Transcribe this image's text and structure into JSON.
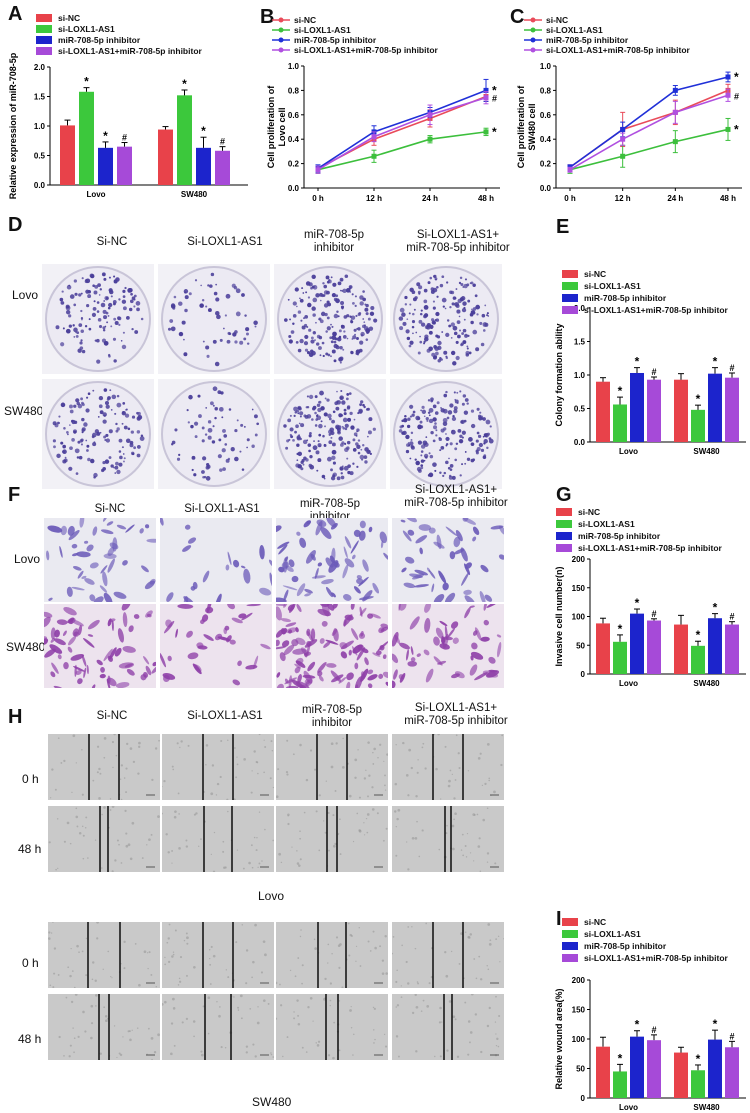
{
  "panel_letters": [
    "A",
    "B",
    "C",
    "D",
    "E",
    "F",
    "G",
    "H",
    "I"
  ],
  "colors": {
    "si_nc": "#e8424a",
    "si_loxl1": "#3cc83c",
    "inhibitor": "#1c24cc",
    "combo": "#a64ad8",
    "line_nc": "#e94b5a",
    "line_loxl1": "#3cbf3c",
    "line_inh": "#2030d8",
    "line_combo": "#b050e0",
    "colony_stain": "#4b3f9a",
    "transwell_lovo": "#6a59b8",
    "transwell_sw480": "#8e3fa8"
  },
  "legend_bar": [
    "si-NC",
    "si-LOXL1-AS1",
    "miR-708-5p inhibitor",
    "si-LOXL1-AS1+miR-708-5p inhibitor"
  ],
  "legend_line": [
    "si-NC",
    "si-LOXL1-AS1",
    "miR-708-5p inhibitor",
    "si-LOXL1-AS1+miR-708-5p inhibitor"
  ],
  "col_headers": {
    "c1": "Si-NC",
    "c2": "Si-LOXL1-AS1",
    "c3": [
      "miR-708-5p",
      "inhibitor"
    ],
    "c4": [
      "Si-LOXL1-AS1+",
      "miR-708-5p inhibitor"
    ]
  },
  "rows": {
    "lovo": "Lovo",
    "sw480": "SW480",
    "t0": "0 h",
    "t48": "48 h",
    "group_lovo": "Lovo",
    "group_sw480": "SW480"
  },
  "chart_data": [
    {
      "id": "A",
      "type": "bar",
      "ylabel": "Relative expression of miR-708-5p",
      "categories": [
        "Lovo",
        "SW480"
      ],
      "ylim": [
        0,
        2.0
      ],
      "yticks": [
        "0.0",
        "0.5",
        "1.0",
        "1.5",
        "2.0"
      ],
      "series": [
        {
          "name": "si-NC",
          "values": [
            1.01,
            0.94
          ],
          "err": [
            0.09,
            0.05
          ],
          "mark": [
            "",
            ""
          ]
        },
        {
          "name": "si-LOXL1-AS1",
          "values": [
            1.58,
            1.52
          ],
          "err": [
            0.07,
            0.09
          ],
          "mark": [
            "*",
            "*"
          ]
        },
        {
          "name": "miR-708-5p inhibitor",
          "values": [
            0.63,
            0.63
          ],
          "err": [
            0.1,
            0.18
          ],
          "mark": [
            "*",
            "*"
          ]
        },
        {
          "name": "si-LOXL1-AS1+miR-708-5p inhibitor",
          "values": [
            0.65,
            0.58
          ],
          "err": [
            0.07,
            0.07
          ],
          "mark": [
            "#",
            "#"
          ]
        }
      ]
    },
    {
      "id": "B",
      "type": "line",
      "ylabel": "Cell proliferation of Lovo cell",
      "x": [
        "0 h",
        "12 h",
        "24 h",
        "48 h"
      ],
      "ylim": [
        0,
        1.0
      ],
      "yticks": [
        "0.0",
        "0.2",
        "0.4",
        "0.6",
        "0.8",
        "1.0"
      ],
      "series": [
        {
          "name": "si-NC",
          "values": [
            0.16,
            0.4,
            0.57,
            0.75
          ],
          "err": [
            0.02,
            0.05,
            0.07,
            0.04
          ],
          "mark": ""
        },
        {
          "name": "si-LOXL1-AS1",
          "values": [
            0.15,
            0.26,
            0.4,
            0.46
          ],
          "err": [
            0.03,
            0.05,
            0.03,
            0.03
          ],
          "mark": "*"
        },
        {
          "name": "miR-708-5p inhibitor",
          "values": [
            0.16,
            0.46,
            0.62,
            0.8
          ],
          "err": [
            0.03,
            0.05,
            0.04,
            0.09
          ],
          "mark": "*"
        },
        {
          "name": "si-LOXL1-AS1+miR-708-5p inhibitor",
          "values": [
            0.15,
            0.42,
            0.6,
            0.74
          ],
          "err": [
            0.03,
            0.04,
            0.08,
            0.05
          ],
          "mark": "#"
        }
      ]
    },
    {
      "id": "C",
      "type": "line",
      "ylabel": "Cell proliferation of SW480 cell",
      "x": [
        "0 h",
        "12 h",
        "24 h",
        "48 h"
      ],
      "ylim": [
        0,
        1.0
      ],
      "yticks": [
        "0.0",
        "0.2",
        "0.4",
        "0.6",
        "0.8",
        "1.0"
      ],
      "series": [
        {
          "name": "si-NC",
          "values": [
            0.17,
            0.48,
            0.62,
            0.8
          ],
          "err": [
            0.02,
            0.14,
            0.1,
            0.05
          ],
          "mark": ""
        },
        {
          "name": "si-LOXL1-AS1",
          "values": [
            0.15,
            0.26,
            0.38,
            0.48
          ],
          "err": [
            0.03,
            0.09,
            0.09,
            0.09
          ],
          "mark": "*"
        },
        {
          "name": "miR-708-5p inhibitor",
          "values": [
            0.17,
            0.48,
            0.8,
            0.91
          ],
          "err": [
            0.02,
            0.06,
            0.04,
            0.04
          ],
          "mark": "*"
        },
        {
          "name": "si-LOXL1-AS1+miR-708-5p inhibitor",
          "values": [
            0.15,
            0.4,
            0.62,
            0.76
          ],
          "err": [
            0.02,
            0.05,
            0.09,
            0.05
          ],
          "mark": "#"
        }
      ]
    },
    {
      "id": "E",
      "type": "bar",
      "ylabel": "Colony formation ability",
      "categories": [
        "Lovo",
        "SW480"
      ],
      "ylim": [
        0,
        2.0
      ],
      "yticks": [
        "0.0",
        "0.5",
        "1.0",
        "1.5",
        "2.0"
      ],
      "series": [
        {
          "name": "si-NC",
          "values": [
            0.9,
            0.93
          ],
          "err": [
            0.06,
            0.09
          ],
          "mark": [
            "",
            ""
          ]
        },
        {
          "name": "si-LOXL1-AS1",
          "values": [
            0.56,
            0.48
          ],
          "err": [
            0.11,
            0.07
          ],
          "mark": [
            "*",
            "*"
          ]
        },
        {
          "name": "miR-708-5p inhibitor",
          "values": [
            1.03,
            1.02
          ],
          "err": [
            0.08,
            0.09
          ],
          "mark": [
            "*",
            "*"
          ]
        },
        {
          "name": "si-LOXL1-AS1+miR-708-5p inhibitor",
          "values": [
            0.93,
            0.96
          ],
          "err": [
            0.04,
            0.07
          ],
          "mark": [
            "#",
            "#"
          ]
        }
      ]
    },
    {
      "id": "G",
      "type": "bar",
      "ylabel": "Invasive cell number(n)",
      "categories": [
        "Lovo",
        "SW480"
      ],
      "ylim": [
        0,
        200
      ],
      "yticks": [
        "0",
        "50",
        "100",
        "150",
        "200"
      ],
      "series": [
        {
          "name": "si-NC",
          "values": [
            88,
            86
          ],
          "err": [
            9,
            16
          ],
          "mark": [
            "",
            ""
          ]
        },
        {
          "name": "si-LOXL1-AS1",
          "values": [
            56,
            49
          ],
          "err": [
            12,
            8
          ],
          "mark": [
            "*",
            "*"
          ]
        },
        {
          "name": "miR-708-5p inhibitor",
          "values": [
            105,
            97
          ],
          "err": [
            8,
            8
          ],
          "mark": [
            "*",
            "*"
          ]
        },
        {
          "name": "si-LOXL1-AS1+miR-708-5p inhibitor",
          "values": [
            93,
            86
          ],
          "err": [
            3,
            5
          ],
          "mark": [
            "#",
            "#"
          ]
        }
      ]
    },
    {
      "id": "I",
      "type": "bar",
      "ylabel": "Relative wound area(%)",
      "categories": [
        "Lovo",
        "SW480"
      ],
      "ylim": [
        0,
        200
      ],
      "yticks": [
        "0",
        "50",
        "100",
        "150",
        "200"
      ],
      "series": [
        {
          "name": "si-NC",
          "values": [
            87,
            77
          ],
          "err": [
            16,
            9
          ],
          "mark": [
            "",
            ""
          ]
        },
        {
          "name": "si-LOXL1-AS1",
          "values": [
            45,
            47
          ],
          "err": [
            12,
            9
          ],
          "mark": [
            "*",
            "*"
          ]
        },
        {
          "name": "miR-708-5p inhibitor",
          "values": [
            104,
            99
          ],
          "err": [
            10,
            16
          ],
          "mark": [
            "*",
            "*"
          ]
        },
        {
          "name": "si-LOXL1-AS1+miR-708-5p inhibitor",
          "values": [
            98,
            86
          ],
          "err": [
            9,
            10
          ],
          "mark": [
            "#",
            "#"
          ]
        }
      ]
    }
  ]
}
